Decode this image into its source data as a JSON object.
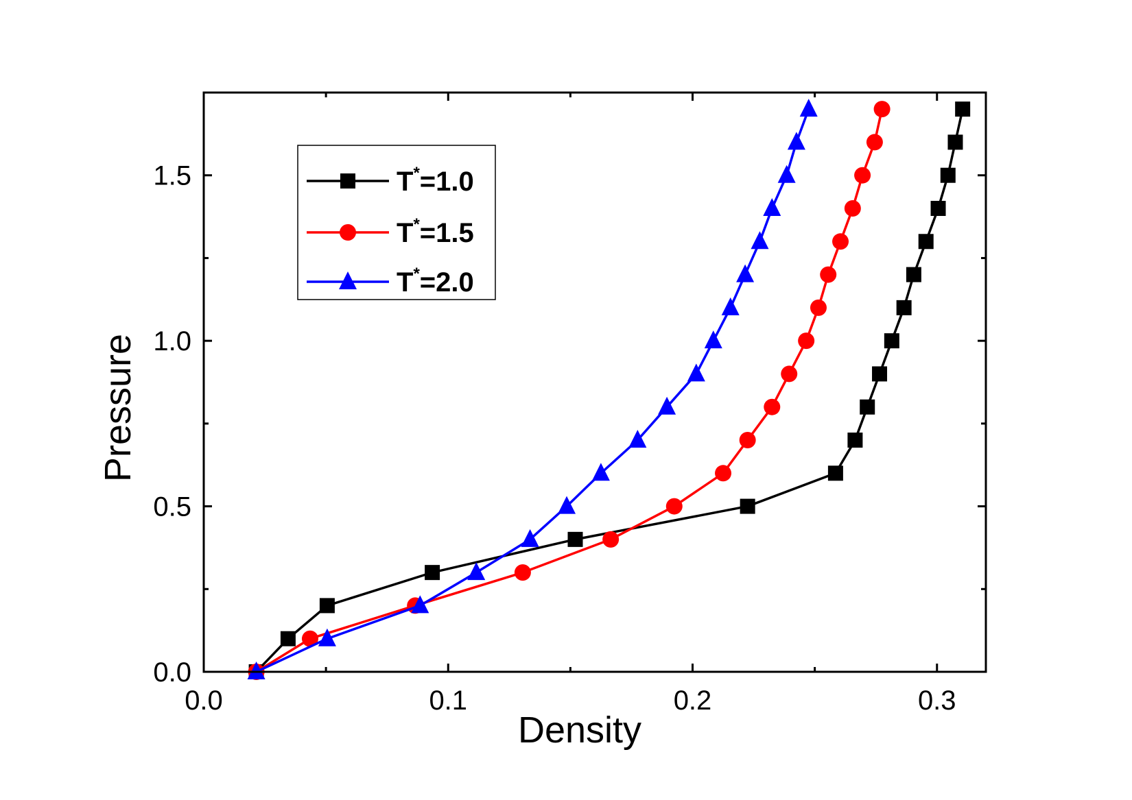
{
  "chart_data": {
    "type": "line",
    "xlabel": "Density",
    "ylabel": "Pressure",
    "xlim": [
      0.0,
      0.32
    ],
    "ylim": [
      0.0,
      1.75
    ],
    "x_ticks": [
      0.0,
      0.1,
      0.2,
      0.3
    ],
    "x_tick_labels": [
      "0.0",
      "0.1",
      "0.2",
      "0.3"
    ],
    "y_ticks": [
      0.0,
      0.5,
      1.0,
      1.5
    ],
    "y_tick_labels": [
      "0.0",
      "0.5",
      "1.0",
      "1.5"
    ],
    "legend_position": "top-left",
    "series": [
      {
        "name": "T*=1.0",
        "label_base": "T",
        "label_sup": "*",
        "label_rest": "=1.0",
        "color": "#000000",
        "marker": "square",
        "x": [
          0.0215,
          0.0345,
          0.0505,
          0.0935,
          0.152,
          0.2225,
          0.2585,
          0.2665,
          0.2715,
          0.2765,
          0.2815,
          0.2865,
          0.2905,
          0.2955,
          0.3005,
          0.3045,
          0.3075,
          0.3105
        ],
        "y": [
          0.0,
          0.1,
          0.2,
          0.3,
          0.4,
          0.5,
          0.6,
          0.7,
          0.8,
          0.9,
          1.0,
          1.1,
          1.2,
          1.3,
          1.4,
          1.5,
          1.6,
          1.7
        ]
      },
      {
        "name": "T*=1.5",
        "label_base": "T",
        "label_sup": "*",
        "label_rest": "=1.5",
        "color": "#ff0000",
        "marker": "circle",
        "x": [
          0.0215,
          0.0435,
          0.0865,
          0.1305,
          0.1665,
          0.1925,
          0.2125,
          0.2225,
          0.2325,
          0.2395,
          0.2465,
          0.2515,
          0.2555,
          0.2605,
          0.2655,
          0.2695,
          0.2745,
          0.2775
        ],
        "y": [
          0.0,
          0.1,
          0.2,
          0.3,
          0.4,
          0.5,
          0.6,
          0.7,
          0.8,
          0.9,
          1.0,
          1.1,
          1.2,
          1.3,
          1.4,
          1.5,
          1.6,
          1.7
        ]
      },
      {
        "name": "T*=2.0",
        "label_base": "T",
        "label_sup": "*",
        "label_rest": "=2.0",
        "color": "#0000ff",
        "marker": "triangle",
        "x": [
          0.0215,
          0.0505,
          0.0885,
          0.1115,
          0.1335,
          0.1485,
          0.1625,
          0.1775,
          0.1895,
          0.2015,
          0.2085,
          0.2155,
          0.2215,
          0.2275,
          0.2325,
          0.2385,
          0.2425,
          0.2475
        ],
        "y": [
          0.0,
          0.1,
          0.2,
          0.3,
          0.4,
          0.5,
          0.6,
          0.7,
          0.8,
          0.9,
          1.0,
          1.1,
          1.2,
          1.3,
          1.4,
          1.5,
          1.6,
          1.7
        ]
      }
    ]
  }
}
